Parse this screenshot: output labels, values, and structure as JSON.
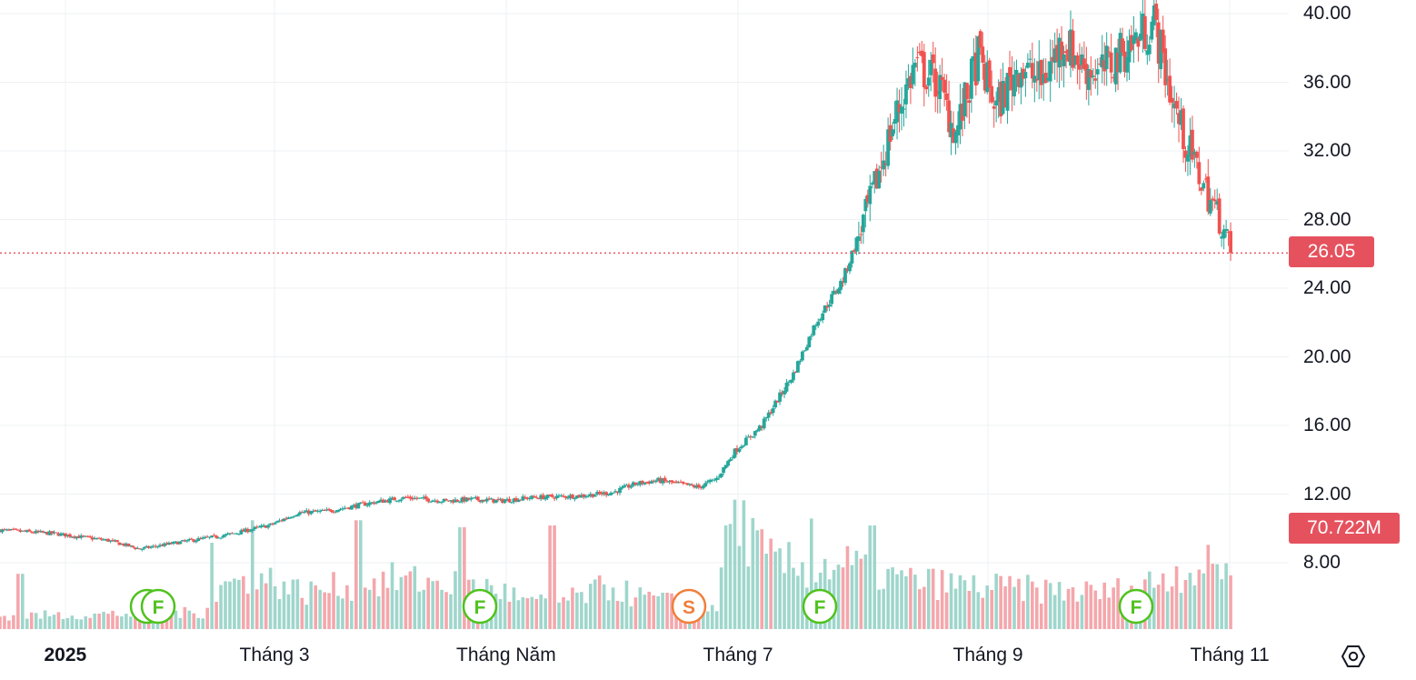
{
  "chart_data": {
    "type": "candlestick",
    "y_axis": {
      "ticks": [
        "8.00",
        "12.00",
        "16.00",
        "20.00",
        "24.00",
        "28.00",
        "32.00",
        "36.00",
        "40.00"
      ],
      "range": [
        5.5,
        40.6
      ],
      "side": "right"
    },
    "x_axis": {
      "labels": [
        "2025",
        "Tháng 3",
        "Tháng Năm",
        "Tháng 7",
        "Tháng 9",
        "Tháng 11"
      ]
    },
    "last_price": "26.05",
    "last_volume": "70.722M",
    "colors": {
      "up": "#26a69a",
      "down": "#ef5350",
      "up_volume": "#9fd6cc",
      "down_volume": "#f4a7ac",
      "grid": "#eef0f3",
      "price_line": "#e5525e"
    },
    "grid": true,
    "anchor_closes": [
      [
        0,
        9.9
      ],
      [
        24,
        9.7
      ],
      [
        48,
        9.3
      ],
      [
        62,
        8.8
      ],
      [
        80,
        9.2
      ],
      [
        100,
        9.6
      ],
      [
        120,
        10.2
      ],
      [
        132,
        10.9
      ],
      [
        145,
        11.0
      ],
      [
        165,
        11.5
      ],
      [
        180,
        11.8
      ],
      [
        198,
        11.6
      ],
      [
        210,
        11.7
      ],
      [
        222,
        11.6
      ],
      [
        236,
        11.8
      ],
      [
        258,
        11.9
      ],
      [
        272,
        12.1
      ],
      [
        282,
        12.6
      ],
      [
        292,
        12.8
      ],
      [
        310,
        12.4
      ],
      [
        318,
        12.9
      ],
      [
        326,
        14.5
      ],
      [
        338,
        16.0
      ],
      [
        352,
        19.0
      ],
      [
        362,
        22.0
      ],
      [
        374,
        24.5
      ],
      [
        386,
        29.0
      ],
      [
        396,
        33.5
      ],
      [
        406,
        37.0
      ],
      [
        416,
        36.0
      ],
      [
        424,
        33.0
      ],
      [
        434,
        37.5
      ],
      [
        442,
        34.5
      ],
      [
        452,
        37.0
      ],
      [
        462,
        36.0
      ],
      [
        472,
        38.5
      ],
      [
        480,
        37.0
      ],
      [
        488,
        36.5
      ],
      [
        500,
        38.0
      ],
      [
        512,
        39.5
      ],
      [
        520,
        35.0
      ],
      [
        526,
        32.5
      ],
      [
        534,
        30.0
      ],
      [
        542,
        27.8
      ],
      [
        546,
        26.05
      ]
    ],
    "volume_shape": [
      [
        0,
        0.08
      ],
      [
        90,
        0.1
      ],
      [
        100,
        0.28
      ],
      [
        120,
        0.3
      ],
      [
        135,
        0.22
      ],
      [
        150,
        0.26
      ],
      [
        175,
        0.3
      ],
      [
        200,
        0.28
      ],
      [
        222,
        0.24
      ],
      [
        234,
        0.16
      ],
      [
        246,
        0.16
      ],
      [
        258,
        0.2
      ],
      [
        270,
        0.26
      ],
      [
        282,
        0.2
      ],
      [
        300,
        0.16
      ],
      [
        318,
        0.14
      ],
      [
        326,
        0.7
      ],
      [
        340,
        0.42
      ],
      [
        360,
        0.36
      ],
      [
        374,
        0.4
      ],
      [
        400,
        0.3
      ],
      [
        430,
        0.26
      ],
      [
        460,
        0.24
      ],
      [
        490,
        0.22
      ],
      [
        506,
        0.26
      ],
      [
        520,
        0.34
      ],
      [
        546,
        0.4
      ]
    ],
    "volume_spikes": [
      [
        0.017,
        0.32
      ],
      [
        0.173,
        0.5
      ],
      [
        0.206,
        0.63
      ],
      [
        0.291,
        0.63
      ],
      [
        0.376,
        0.59
      ],
      [
        0.449,
        0.6
      ],
      [
        0.589,
        0.6
      ],
      [
        0.66,
        0.64
      ],
      [
        0.709,
        0.6
      ]
    ],
    "events": [
      {
        "label": "F",
        "color": "#4fc21e"
      },
      {
        "label": "F",
        "color": "#4fc21e"
      },
      {
        "label": "F",
        "color": "#4fc21e"
      },
      {
        "label": "S",
        "color": "#f07f3c"
      },
      {
        "label": "F",
        "color": "#4fc21e"
      },
      {
        "label": "F",
        "color": "#4fc21e"
      }
    ]
  },
  "settings_icon": "hexagon-gear-icon"
}
